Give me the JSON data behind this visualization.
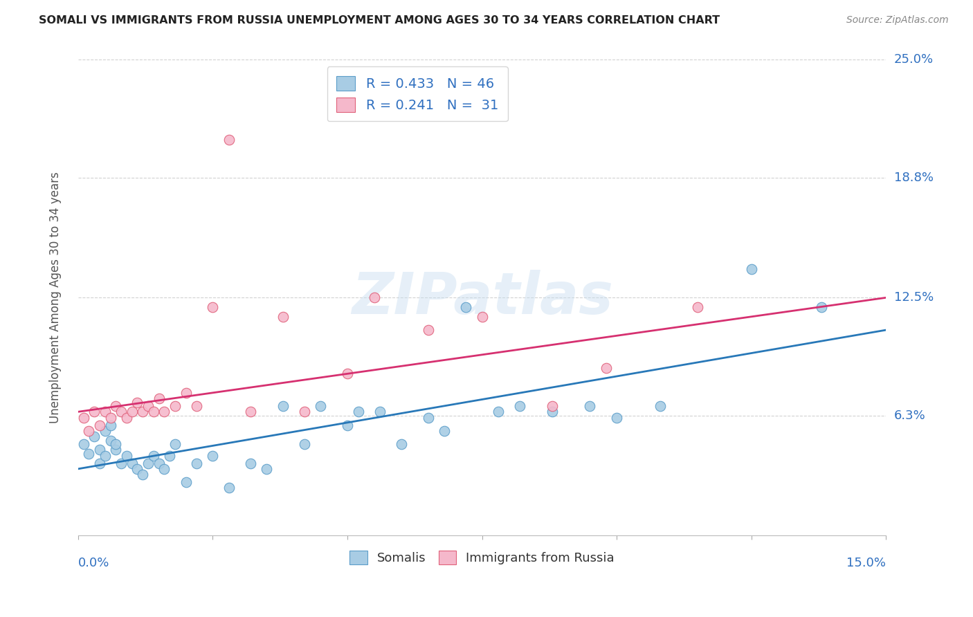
{
  "title": "SOMALI VS IMMIGRANTS FROM RUSSIA UNEMPLOYMENT AMONG AGES 30 TO 34 YEARS CORRELATION CHART",
  "source": "Source: ZipAtlas.com",
  "ylabel": "Unemployment Among Ages 30 to 34 years",
  "xlim": [
    0.0,
    0.15
  ],
  "ylim": [
    0.0,
    0.25
  ],
  "y_tick_labels": [
    "6.3%",
    "12.5%",
    "18.8%",
    "25.0%"
  ],
  "y_tick_values": [
    0.063,
    0.125,
    0.188,
    0.25
  ],
  "scatter_blue_color": "#a8cce4",
  "scatter_blue_edge": "#5b9dc9",
  "scatter_pink_color": "#f5b8cb",
  "scatter_pink_edge": "#e0607a",
  "blue_line_color": "#2878b8",
  "pink_line_color": "#d63070",
  "watermark": "ZIPatlas",
  "blue_line_start": 0.035,
  "blue_line_end": 0.108,
  "pink_line_start": 0.065,
  "pink_line_end": 0.125,
  "somalis_x": [
    0.001,
    0.002,
    0.003,
    0.004,
    0.004,
    0.005,
    0.005,
    0.006,
    0.006,
    0.007,
    0.007,
    0.008,
    0.009,
    0.01,
    0.011,
    0.012,
    0.013,
    0.014,
    0.015,
    0.016,
    0.017,
    0.018,
    0.02,
    0.022,
    0.025,
    0.028,
    0.032,
    0.035,
    0.038,
    0.042,
    0.045,
    0.05,
    0.052,
    0.056,
    0.06,
    0.065,
    0.068,
    0.072,
    0.078,
    0.082,
    0.088,
    0.095,
    0.1,
    0.108,
    0.125,
    0.138
  ],
  "somalis_y": [
    0.048,
    0.043,
    0.052,
    0.038,
    0.045,
    0.042,
    0.055,
    0.058,
    0.05,
    0.045,
    0.048,
    0.038,
    0.042,
    0.038,
    0.035,
    0.032,
    0.038,
    0.042,
    0.038,
    0.035,
    0.042,
    0.048,
    0.028,
    0.038,
    0.042,
    0.025,
    0.038,
    0.035,
    0.068,
    0.048,
    0.068,
    0.058,
    0.065,
    0.065,
    0.048,
    0.062,
    0.055,
    0.12,
    0.065,
    0.068,
    0.065,
    0.068,
    0.062,
    0.068,
    0.14,
    0.12
  ],
  "russia_x": [
    0.001,
    0.002,
    0.003,
    0.004,
    0.005,
    0.006,
    0.007,
    0.008,
    0.009,
    0.01,
    0.011,
    0.012,
    0.013,
    0.014,
    0.015,
    0.016,
    0.018,
    0.02,
    0.022,
    0.025,
    0.028,
    0.032,
    0.038,
    0.042,
    0.05,
    0.055,
    0.065,
    0.075,
    0.088,
    0.098,
    0.115
  ],
  "russia_y": [
    0.062,
    0.055,
    0.065,
    0.058,
    0.065,
    0.062,
    0.068,
    0.065,
    0.062,
    0.065,
    0.07,
    0.065,
    0.068,
    0.065,
    0.072,
    0.065,
    0.068,
    0.075,
    0.068,
    0.12,
    0.208,
    0.065,
    0.115,
    0.065,
    0.085,
    0.125,
    0.108,
    0.115,
    0.068,
    0.088,
    0.12
  ]
}
